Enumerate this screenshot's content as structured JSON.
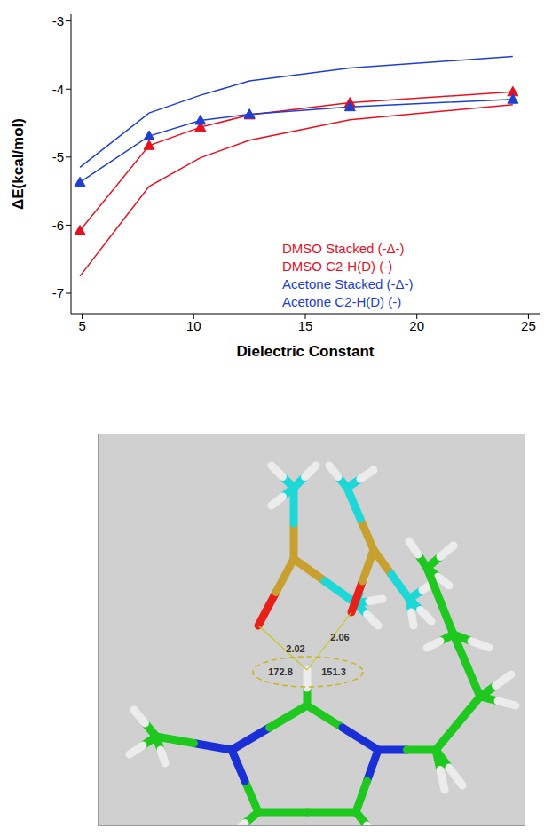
{
  "chart_data": {
    "type": "line",
    "x_label": "Dielectric Constant",
    "y_label": "ΔE(kcal/mol)",
    "x": [
      4.9,
      8.0,
      10.3,
      12.5,
      17.0,
      24.3
    ],
    "xlim": [
      4.5,
      25.5
    ],
    "xticks": [
      5,
      10,
      15,
      20,
      25
    ],
    "ylim": [
      -7.3,
      -2.9
    ],
    "yticks": [
      -7,
      -6,
      -5,
      -4,
      -3
    ],
    "legend": "right",
    "grid": false,
    "series": [
      {
        "name": "DMSO Stacked (-Δ-)",
        "color": "#e8101e",
        "marker": "triangle",
        "values": [
          -6.08,
          -4.83,
          -4.56,
          -4.38,
          -4.2,
          -4.04
        ]
      },
      {
        "name": "DMSO C2-H(D) (-)",
        "color": "#e8101e",
        "marker": "none",
        "values": [
          -6.75,
          -5.43,
          -5.01,
          -4.75,
          -4.45,
          -4.23
        ]
      },
      {
        "name": "Acetone Stacked (-Δ-)",
        "color": "#1f3fd0",
        "marker": "triangle",
        "values": [
          -5.37,
          -4.69,
          -4.46,
          -4.37,
          -4.26,
          -4.15
        ]
      },
      {
        "name": "Acetone C2-H(D) (-)",
        "color": "#1f3fd0",
        "marker": "none",
        "values": [
          -5.15,
          -4.35,
          -4.09,
          -3.88,
          -3.69,
          -3.52
        ]
      }
    ]
  },
  "diagram": {
    "distances": [
      2.02,
      2.06
    ],
    "angles": [
      172.8,
      151.3
    ]
  }
}
